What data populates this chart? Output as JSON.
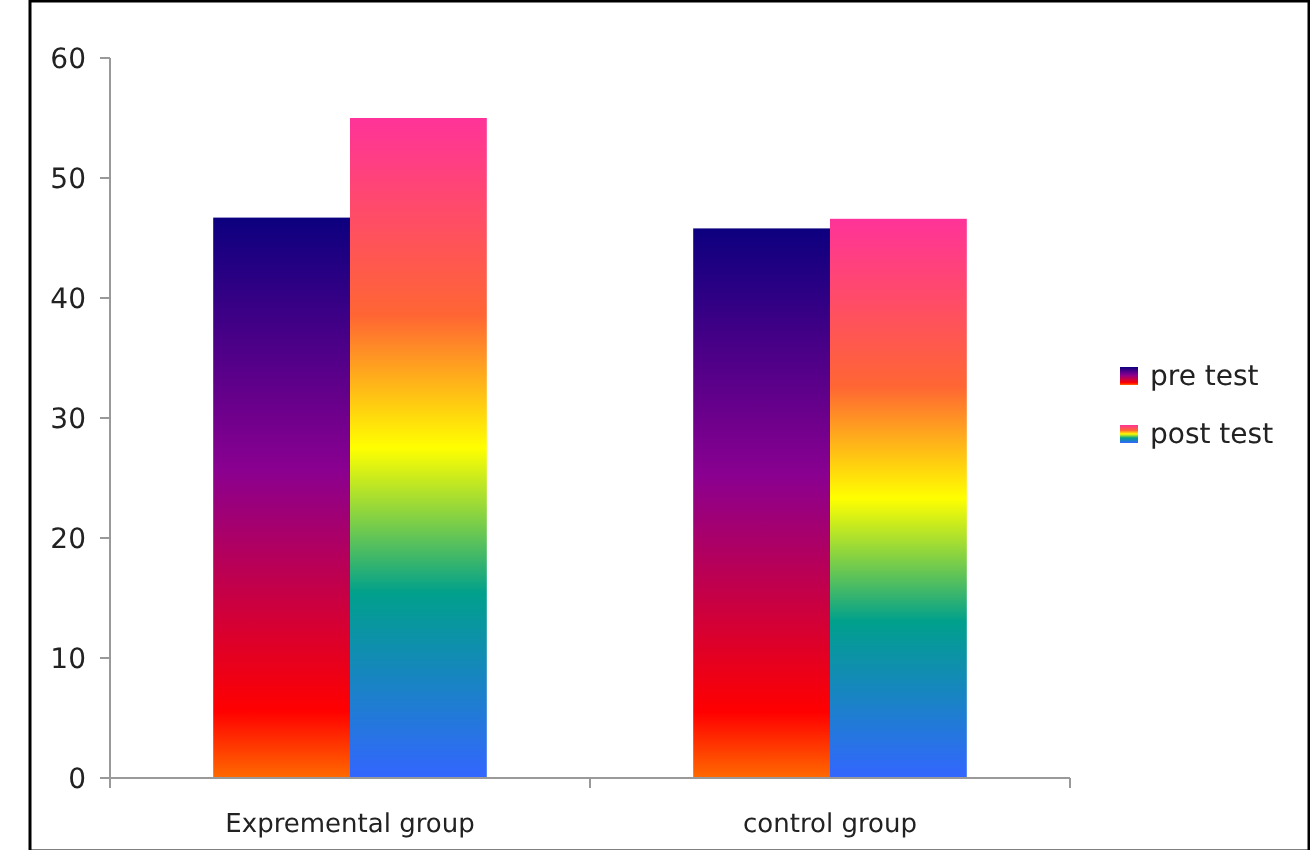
{
  "chart_data": {
    "type": "bar",
    "categories": [
      "Expremental group",
      "control group"
    ],
    "series": [
      {
        "name": "pre test",
        "color": "#0c007f",
        "values": [
          46.7,
          45.8
        ]
      },
      {
        "name": "post test",
        "color": "#ff3399",
        "values": [
          55,
          46.6
        ]
      }
    ],
    "ylim": [
      0,
      60
    ],
    "yticks": [
      0,
      10,
      20,
      30,
      40,
      50,
      60
    ],
    "grid": false,
    "legend": "right"
  }
}
